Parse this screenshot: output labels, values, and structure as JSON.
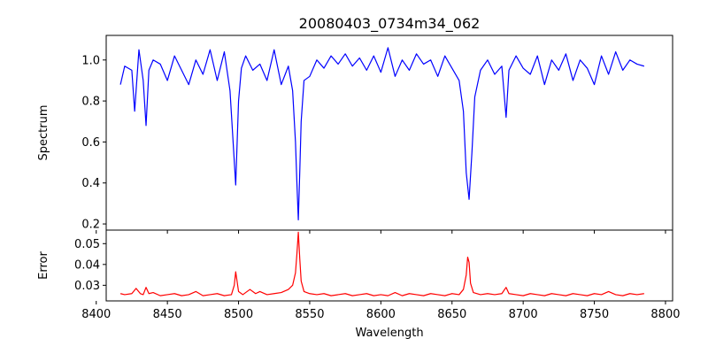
{
  "chart_data": [
    {
      "type": "line",
      "panel": "spectrum",
      "title": "20080403_0734m34_062",
      "xlabel": "",
      "ylabel": "Spectrum",
      "xlim": [
        8407,
        8805
      ],
      "ylim": [
        0.17,
        1.12
      ],
      "xticks": [
        8400,
        8450,
        8500,
        8550,
        8600,
        8650,
        8700,
        8750,
        8800
      ],
      "yticks": [
        0.2,
        0.4,
        0.6,
        0.8,
        1.0
      ],
      "ytick_labels": [
        "0.2",
        "0.4",
        "0.6",
        "0.8",
        "1.0"
      ],
      "grid": false,
      "color": "#0000ff",
      "x": [
        8417,
        8420,
        8425,
        8427,
        8430,
        8433,
        8435,
        8437,
        8440,
        8445,
        8450,
        8455,
        8460,
        8465,
        8470,
        8475,
        8480,
        8485,
        8490,
        8494,
        8496,
        8498,
        8500,
        8502,
        8505,
        8510,
        8515,
        8520,
        8525,
        8530,
        8535,
        8538,
        8540,
        8541,
        8542,
        8543,
        8544,
        8546,
        8550,
        8555,
        8560,
        8565,
        8570,
        8575,
        8580,
        8585,
        8590,
        8595,
        8600,
        8605,
        8610,
        8615,
        8620,
        8625,
        8630,
        8635,
        8640,
        8645,
        8650,
        8655,
        8658,
        8660,
        8662,
        8664,
        8666,
        8670,
        8675,
        8680,
        8685,
        8688,
        8690,
        8695,
        8700,
        8705,
        8710,
        8715,
        8720,
        8725,
        8730,
        8735,
        8740,
        8745,
        8750,
        8755,
        8760,
        8765,
        8770,
        8775,
        8780,
        8785
      ],
      "y": [
        0.88,
        0.97,
        0.95,
        0.75,
        1.05,
        0.9,
        0.68,
        0.95,
        1.0,
        0.98,
        0.9,
        1.02,
        0.95,
        0.88,
        1.0,
        0.93,
        1.05,
        0.9,
        1.04,
        0.85,
        0.62,
        0.39,
        0.8,
        0.96,
        1.02,
        0.95,
        0.98,
        0.9,
        1.05,
        0.88,
        0.97,
        0.85,
        0.6,
        0.4,
        0.22,
        0.45,
        0.7,
        0.9,
        0.92,
        1.0,
        0.96,
        1.02,
        0.98,
        1.03,
        0.97,
        1.01,
        0.95,
        1.02,
        0.94,
        1.06,
        0.92,
        1.0,
        0.95,
        1.03,
        0.98,
        1.0,
        0.92,
        1.02,
        0.96,
        0.9,
        0.75,
        0.45,
        0.32,
        0.55,
        0.82,
        0.95,
        1.0,
        0.93,
        0.97,
        0.72,
        0.95,
        1.02,
        0.96,
        0.93,
        1.02,
        0.88,
        1.0,
        0.95,
        1.03,
        0.9,
        1.0,
        0.96,
        0.88,
        1.02,
        0.93,
        1.04,
        0.95,
        1.0,
        0.98,
        0.97
      ]
    },
    {
      "type": "line",
      "panel": "error",
      "title": "",
      "xlabel": "Wavelength",
      "ylabel": "Error",
      "xlim": [
        8407,
        8805
      ],
      "ylim": [
        0.0225,
        0.0565
      ],
      "xticks": [
        8400,
        8450,
        8500,
        8550,
        8600,
        8650,
        8700,
        8750,
        8800
      ],
      "xtick_labels": [
        "8400",
        "8450",
        "8500",
        "8550",
        "8600",
        "8650",
        "8700",
        "8750",
        "8800"
      ],
      "yticks": [
        0.03,
        0.04,
        0.05
      ],
      "ytick_labels": [
        "0.03",
        "0.04",
        "0.05"
      ],
      "grid": false,
      "color": "#ff0000",
      "x": [
        8417,
        8420,
        8425,
        8428,
        8431,
        8433,
        8435,
        8437,
        8440,
        8445,
        8450,
        8455,
        8460,
        8465,
        8470,
        8475,
        8480,
        8485,
        8490,
        8495,
        8497,
        8498,
        8500,
        8503,
        8508,
        8512,
        8515,
        8520,
        8525,
        8530,
        8535,
        8538,
        8540,
        8541,
        8542,
        8543,
        8544,
        8546,
        8550,
        8555,
        8560,
        8565,
        8570,
        8575,
        8580,
        8585,
        8590,
        8595,
        8600,
        8605,
        8610,
        8615,
        8620,
        8625,
        8630,
        8635,
        8640,
        8645,
        8650,
        8655,
        8658,
        8660,
        8661,
        8662,
        8663,
        8665,
        8670,
        8675,
        8680,
        8685,
        8688,
        8690,
        8695,
        8700,
        8705,
        8710,
        8715,
        8720,
        8725,
        8730,
        8735,
        8740,
        8745,
        8750,
        8755,
        8760,
        8765,
        8770,
        8775,
        8780,
        8785
      ],
      "y": [
        0.026,
        0.0255,
        0.026,
        0.0285,
        0.026,
        0.0255,
        0.029,
        0.026,
        0.0265,
        0.025,
        0.0255,
        0.026,
        0.025,
        0.0255,
        0.027,
        0.025,
        0.0255,
        0.026,
        0.025,
        0.0255,
        0.03,
        0.0365,
        0.027,
        0.0255,
        0.028,
        0.026,
        0.027,
        0.0255,
        0.026,
        0.0265,
        0.028,
        0.03,
        0.036,
        0.045,
        0.0555,
        0.043,
        0.032,
        0.027,
        0.026,
        0.0255,
        0.026,
        0.025,
        0.0255,
        0.026,
        0.025,
        0.0255,
        0.026,
        0.025,
        0.0255,
        0.025,
        0.0265,
        0.025,
        0.026,
        0.0255,
        0.025,
        0.026,
        0.0255,
        0.025,
        0.026,
        0.0255,
        0.028,
        0.035,
        0.0435,
        0.041,
        0.031,
        0.0265,
        0.0255,
        0.026,
        0.0255,
        0.026,
        0.029,
        0.026,
        0.0255,
        0.025,
        0.026,
        0.0255,
        0.025,
        0.026,
        0.0255,
        0.025,
        0.026,
        0.0255,
        0.025,
        0.026,
        0.0255,
        0.027,
        0.0255,
        0.025,
        0.026,
        0.0255,
        0.026
      ]
    }
  ]
}
